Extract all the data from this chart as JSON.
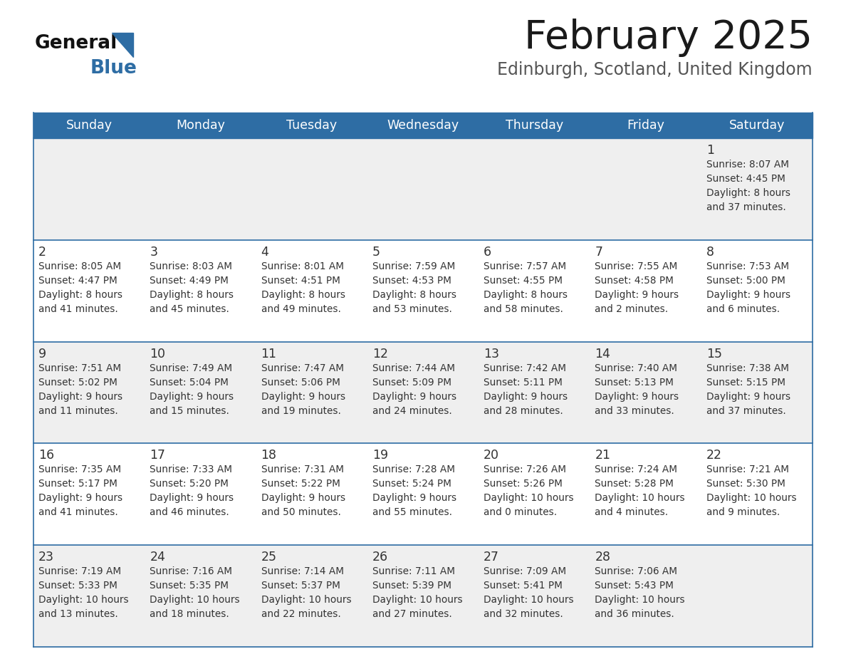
{
  "title": "February 2025",
  "subtitle": "Edinburgh, Scotland, United Kingdom",
  "header_color": "#2E6DA4",
  "header_text_color": "#FFFFFF",
  "row_bg_even": "#EFEFEF",
  "row_bg_odd": "#FFFFFF",
  "border_color": "#2E6DA4",
  "text_color": "#333333",
  "day_headers": [
    "Sunday",
    "Monday",
    "Tuesday",
    "Wednesday",
    "Thursday",
    "Friday",
    "Saturday"
  ],
  "days": [
    {
      "day": 1,
      "col": 6,
      "row": 0,
      "sunrise": "8:07 AM",
      "sunset": "4:45 PM",
      "daylight": "8 hours and 37 minutes."
    },
    {
      "day": 2,
      "col": 0,
      "row": 1,
      "sunrise": "8:05 AM",
      "sunset": "4:47 PM",
      "daylight": "8 hours and 41 minutes."
    },
    {
      "day": 3,
      "col": 1,
      "row": 1,
      "sunrise": "8:03 AM",
      "sunset": "4:49 PM",
      "daylight": "8 hours and 45 minutes."
    },
    {
      "day": 4,
      "col": 2,
      "row": 1,
      "sunrise": "8:01 AM",
      "sunset": "4:51 PM",
      "daylight": "8 hours and 49 minutes."
    },
    {
      "day": 5,
      "col": 3,
      "row": 1,
      "sunrise": "7:59 AM",
      "sunset": "4:53 PM",
      "daylight": "8 hours and 53 minutes."
    },
    {
      "day": 6,
      "col": 4,
      "row": 1,
      "sunrise": "7:57 AM",
      "sunset": "4:55 PM",
      "daylight": "8 hours and 58 minutes."
    },
    {
      "day": 7,
      "col": 5,
      "row": 1,
      "sunrise": "7:55 AM",
      "sunset": "4:58 PM",
      "daylight": "9 hours and 2 minutes."
    },
    {
      "day": 8,
      "col": 6,
      "row": 1,
      "sunrise": "7:53 AM",
      "sunset": "5:00 PM",
      "daylight": "9 hours and 6 minutes."
    },
    {
      "day": 9,
      "col": 0,
      "row": 2,
      "sunrise": "7:51 AM",
      "sunset": "5:02 PM",
      "daylight": "9 hours and 11 minutes."
    },
    {
      "day": 10,
      "col": 1,
      "row": 2,
      "sunrise": "7:49 AM",
      "sunset": "5:04 PM",
      "daylight": "9 hours and 15 minutes."
    },
    {
      "day": 11,
      "col": 2,
      "row": 2,
      "sunrise": "7:47 AM",
      "sunset": "5:06 PM",
      "daylight": "9 hours and 19 minutes."
    },
    {
      "day": 12,
      "col": 3,
      "row": 2,
      "sunrise": "7:44 AM",
      "sunset": "5:09 PM",
      "daylight": "9 hours and 24 minutes."
    },
    {
      "day": 13,
      "col": 4,
      "row": 2,
      "sunrise": "7:42 AM",
      "sunset": "5:11 PM",
      "daylight": "9 hours and 28 minutes."
    },
    {
      "day": 14,
      "col": 5,
      "row": 2,
      "sunrise": "7:40 AM",
      "sunset": "5:13 PM",
      "daylight": "9 hours and 33 minutes."
    },
    {
      "day": 15,
      "col": 6,
      "row": 2,
      "sunrise": "7:38 AM",
      "sunset": "5:15 PM",
      "daylight": "9 hours and 37 minutes."
    },
    {
      "day": 16,
      "col": 0,
      "row": 3,
      "sunrise": "7:35 AM",
      "sunset": "5:17 PM",
      "daylight": "9 hours and 41 minutes."
    },
    {
      "day": 17,
      "col": 1,
      "row": 3,
      "sunrise": "7:33 AM",
      "sunset": "5:20 PM",
      "daylight": "9 hours and 46 minutes."
    },
    {
      "day": 18,
      "col": 2,
      "row": 3,
      "sunrise": "7:31 AM",
      "sunset": "5:22 PM",
      "daylight": "9 hours and 50 minutes."
    },
    {
      "day": 19,
      "col": 3,
      "row": 3,
      "sunrise": "7:28 AM",
      "sunset": "5:24 PM",
      "daylight": "9 hours and 55 minutes."
    },
    {
      "day": 20,
      "col": 4,
      "row": 3,
      "sunrise": "7:26 AM",
      "sunset": "5:26 PM",
      "daylight": "10 hours and 0 minutes."
    },
    {
      "day": 21,
      "col": 5,
      "row": 3,
      "sunrise": "7:24 AM",
      "sunset": "5:28 PM",
      "daylight": "10 hours and 4 minutes."
    },
    {
      "day": 22,
      "col": 6,
      "row": 3,
      "sunrise": "7:21 AM",
      "sunset": "5:30 PM",
      "daylight": "10 hours and 9 minutes."
    },
    {
      "day": 23,
      "col": 0,
      "row": 4,
      "sunrise": "7:19 AM",
      "sunset": "5:33 PM",
      "daylight": "10 hours and 13 minutes."
    },
    {
      "day": 24,
      "col": 1,
      "row": 4,
      "sunrise": "7:16 AM",
      "sunset": "5:35 PM",
      "daylight": "10 hours and 18 minutes."
    },
    {
      "day": 25,
      "col": 2,
      "row": 4,
      "sunrise": "7:14 AM",
      "sunset": "5:37 PM",
      "daylight": "10 hours and 22 minutes."
    },
    {
      "day": 26,
      "col": 3,
      "row": 4,
      "sunrise": "7:11 AM",
      "sunset": "5:39 PM",
      "daylight": "10 hours and 27 minutes."
    },
    {
      "day": 27,
      "col": 4,
      "row": 4,
      "sunrise": "7:09 AM",
      "sunset": "5:41 PM",
      "daylight": "10 hours and 32 minutes."
    },
    {
      "day": 28,
      "col": 5,
      "row": 4,
      "sunrise": "7:06 AM",
      "sunset": "5:43 PM",
      "daylight": "10 hours and 36 minutes."
    }
  ]
}
